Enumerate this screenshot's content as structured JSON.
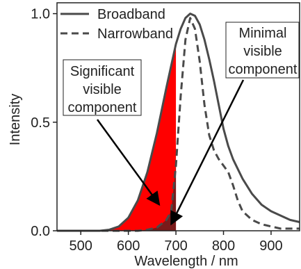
{
  "chart_data": {
    "type": "line",
    "xlabel": "Wavelength / nm",
    "ylabel": "Intensity",
    "xlim": [
      450,
      960
    ],
    "ylim": [
      0,
      1.05
    ],
    "x_ticks": [
      500,
      600,
      700,
      800,
      900
    ],
    "y_ticks": [
      0.0,
      0.5,
      1.0
    ],
    "x_tick_labels": [
      "500",
      "600",
      "700",
      "800",
      "900"
    ],
    "y_tick_labels": [
      "0.0",
      "0.5",
      "1.0"
    ],
    "legend_position": "top-left",
    "colors": {
      "line": "#4a4a4a",
      "significant_fill": "#ff0000",
      "minimal_fill": "#7a1a1a"
    },
    "series": [
      {
        "name": "Broadband",
        "style": "solid",
        "x": [
          450,
          540,
          560,
          580,
          600,
          620,
          640,
          660,
          680,
          700,
          710,
          720,
          730,
          740,
          750,
          760,
          770,
          780,
          790,
          800,
          810,
          820,
          840,
          860,
          880,
          900,
          920,
          940,
          960
        ],
        "y": [
          0.0,
          0.0,
          0.005,
          0.02,
          0.06,
          0.14,
          0.27,
          0.45,
          0.66,
          0.86,
          0.93,
          0.98,
          1.0,
          0.99,
          0.95,
          0.88,
          0.79,
          0.69,
          0.58,
          0.47,
          0.39,
          0.33,
          0.24,
          0.17,
          0.12,
          0.09,
          0.07,
          0.05,
          0.04
        ]
      },
      {
        "name": "Narrowband",
        "style": "dashed",
        "x": [
          450,
          620,
          640,
          660,
          680,
          690,
          700,
          710,
          720,
          730,
          740,
          750,
          760,
          770,
          780,
          790,
          800,
          810,
          820,
          830,
          840,
          860,
          880,
          900,
          920,
          940,
          960
        ],
        "y": [
          0.0,
          0.0,
          0.005,
          0.015,
          0.05,
          0.09,
          0.3,
          0.62,
          0.88,
          0.98,
          0.93,
          0.78,
          0.58,
          0.44,
          0.37,
          0.33,
          0.3,
          0.27,
          0.21,
          0.14,
          0.09,
          0.05,
          0.03,
          0.02,
          0.01,
          0.01,
          0.01
        ]
      }
    ],
    "shaded_regions": [
      {
        "series": "Broadband",
        "x_max": 700,
        "color": "significant_fill"
      },
      {
        "series": "Narrowband",
        "x_max": 700,
        "color": "minimal_fill"
      }
    ],
    "annotations": [
      {
        "lines": [
          "Significant",
          "visible",
          "component"
        ],
        "arrow_target": {
          "x": 665,
          "y": 0.12
        }
      },
      {
        "lines": [
          "Minimal",
          "visible",
          "component"
        ],
        "arrow_target": {
          "x": 690,
          "y": 0.03
        }
      }
    ]
  }
}
